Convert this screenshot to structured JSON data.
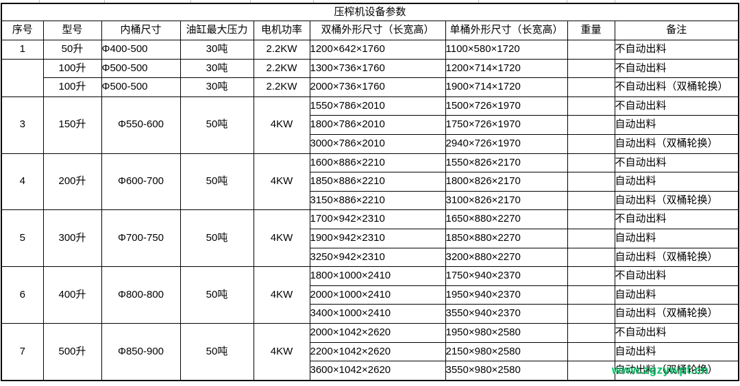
{
  "table": {
    "title": "压榨机设备参数",
    "columns": [
      "序号",
      "型号",
      "内桶尺寸",
      "油缸最大压力",
      "电机功率",
      "双桶外形尺寸（长宽高）",
      "单桶外形尺寸（长宽高）",
      "重量",
      "备注"
    ],
    "groups": [
      {
        "seq": "1",
        "model": "50升",
        "inner": "Φ400-500",
        "pressure": "30吨",
        "power": "2.2KW",
        "rows": [
          {
            "double": "1200×642×1760",
            "single": "1100×580×1720",
            "weight": "",
            "note": "不自动出料"
          }
        ]
      },
      {
        "seq": "",
        "rows": [
          {
            "model": "100升",
            "inner": "Φ500-500",
            "pressure": "30吨",
            "power": "2.2KW",
            "double": "1300×736×1760",
            "single": "1200×714×1720",
            "weight": "",
            "note": "不自动出料"
          },
          {
            "model": "100升",
            "inner": "Φ500-500",
            "pressure": "30吨",
            "power": "2.2KW",
            "double": "2000×736×1760",
            "single": "1900×714×1720",
            "weight": "",
            "note": "不自动出料（双桶轮换）"
          }
        ]
      },
      {
        "seq": "3",
        "model": "150升",
        "inner": "Φ550-600",
        "pressure": "50吨",
        "power": "4KW",
        "rows": [
          {
            "double": "1550×786×2010",
            "single": "1500×726×1970",
            "weight": "",
            "note": "不自动出料"
          },
          {
            "double": "1800×786×2010",
            "single": "1750×726×1970",
            "weight": "",
            "note": "自动出料"
          },
          {
            "double": "3000×786×2010",
            "single": "2940×726×1970",
            "weight": "",
            "note": "自动出料（双桶轮换）"
          }
        ]
      },
      {
        "seq": "4",
        "model": "200升",
        "inner": "Φ600-700",
        "pressure": "50吨",
        "power": "4KW",
        "rows": [
          {
            "double": "1600×886×2210",
            "single": "1550×826×2170",
            "weight": "",
            "note": "不自动出料"
          },
          {
            "double": "1850×886×2210",
            "single": "1800×826×2170",
            "weight": "",
            "note": "自动出料"
          },
          {
            "double": "3150×886×2210",
            "single": "3100×826×2170",
            "weight": "",
            "note": "自动出料（双桶轮换）"
          }
        ]
      },
      {
        "seq": "5",
        "model": "300升",
        "inner": "Φ700-750",
        "pressure": "50吨",
        "power": "4KW",
        "rows": [
          {
            "double": "1700×942×2310",
            "single": "1650×880×2270",
            "weight": "",
            "note": "不自动出料"
          },
          {
            "double": "1900×942×2310",
            "single": "1850×880×2270",
            "weight": "",
            "note": "自动出料"
          },
          {
            "double": "3250×942×2310",
            "single": "3200×880×2270",
            "weight": "",
            "note": "自动出料（双桶轮换）"
          }
        ]
      },
      {
        "seq": "6",
        "model": "400升",
        "inner": "Φ800-800",
        "pressure": "50吨",
        "power": "4KW",
        "rows": [
          {
            "double": "1800×1000×2410",
            "single": "1750×940×2370",
            "weight": "",
            "note": "不自动出料"
          },
          {
            "double": "2000×1000×2410",
            "single": "1950×940×2370",
            "weight": "",
            "note": "自动出料"
          },
          {
            "double": "3400×1000×2410",
            "single": "3550×940×2370",
            "weight": "",
            "note": "自动出料（双桶轮换）"
          }
        ]
      },
      {
        "seq": "7",
        "model": "500升",
        "inner": "Φ850-900",
        "pressure": "50吨",
        "power": "4KW",
        "rows": [
          {
            "double": "2000×1042×2620",
            "single": "1950×980×2580",
            "weight": "",
            "note": "不自动出料"
          },
          {
            "double": "2200×1042×2620",
            "single": "2150×980×2580",
            "weight": "",
            "note": "自动出料"
          },
          {
            "double": "3600×1042×2620",
            "single": "3550×980×2580",
            "weight": "",
            "note": "自动出料（双桶轮换）"
          }
        ]
      }
    ]
  },
  "watermark": {
    "text": "www.zgzywpt.cn",
    "color": "#00bf63"
  }
}
